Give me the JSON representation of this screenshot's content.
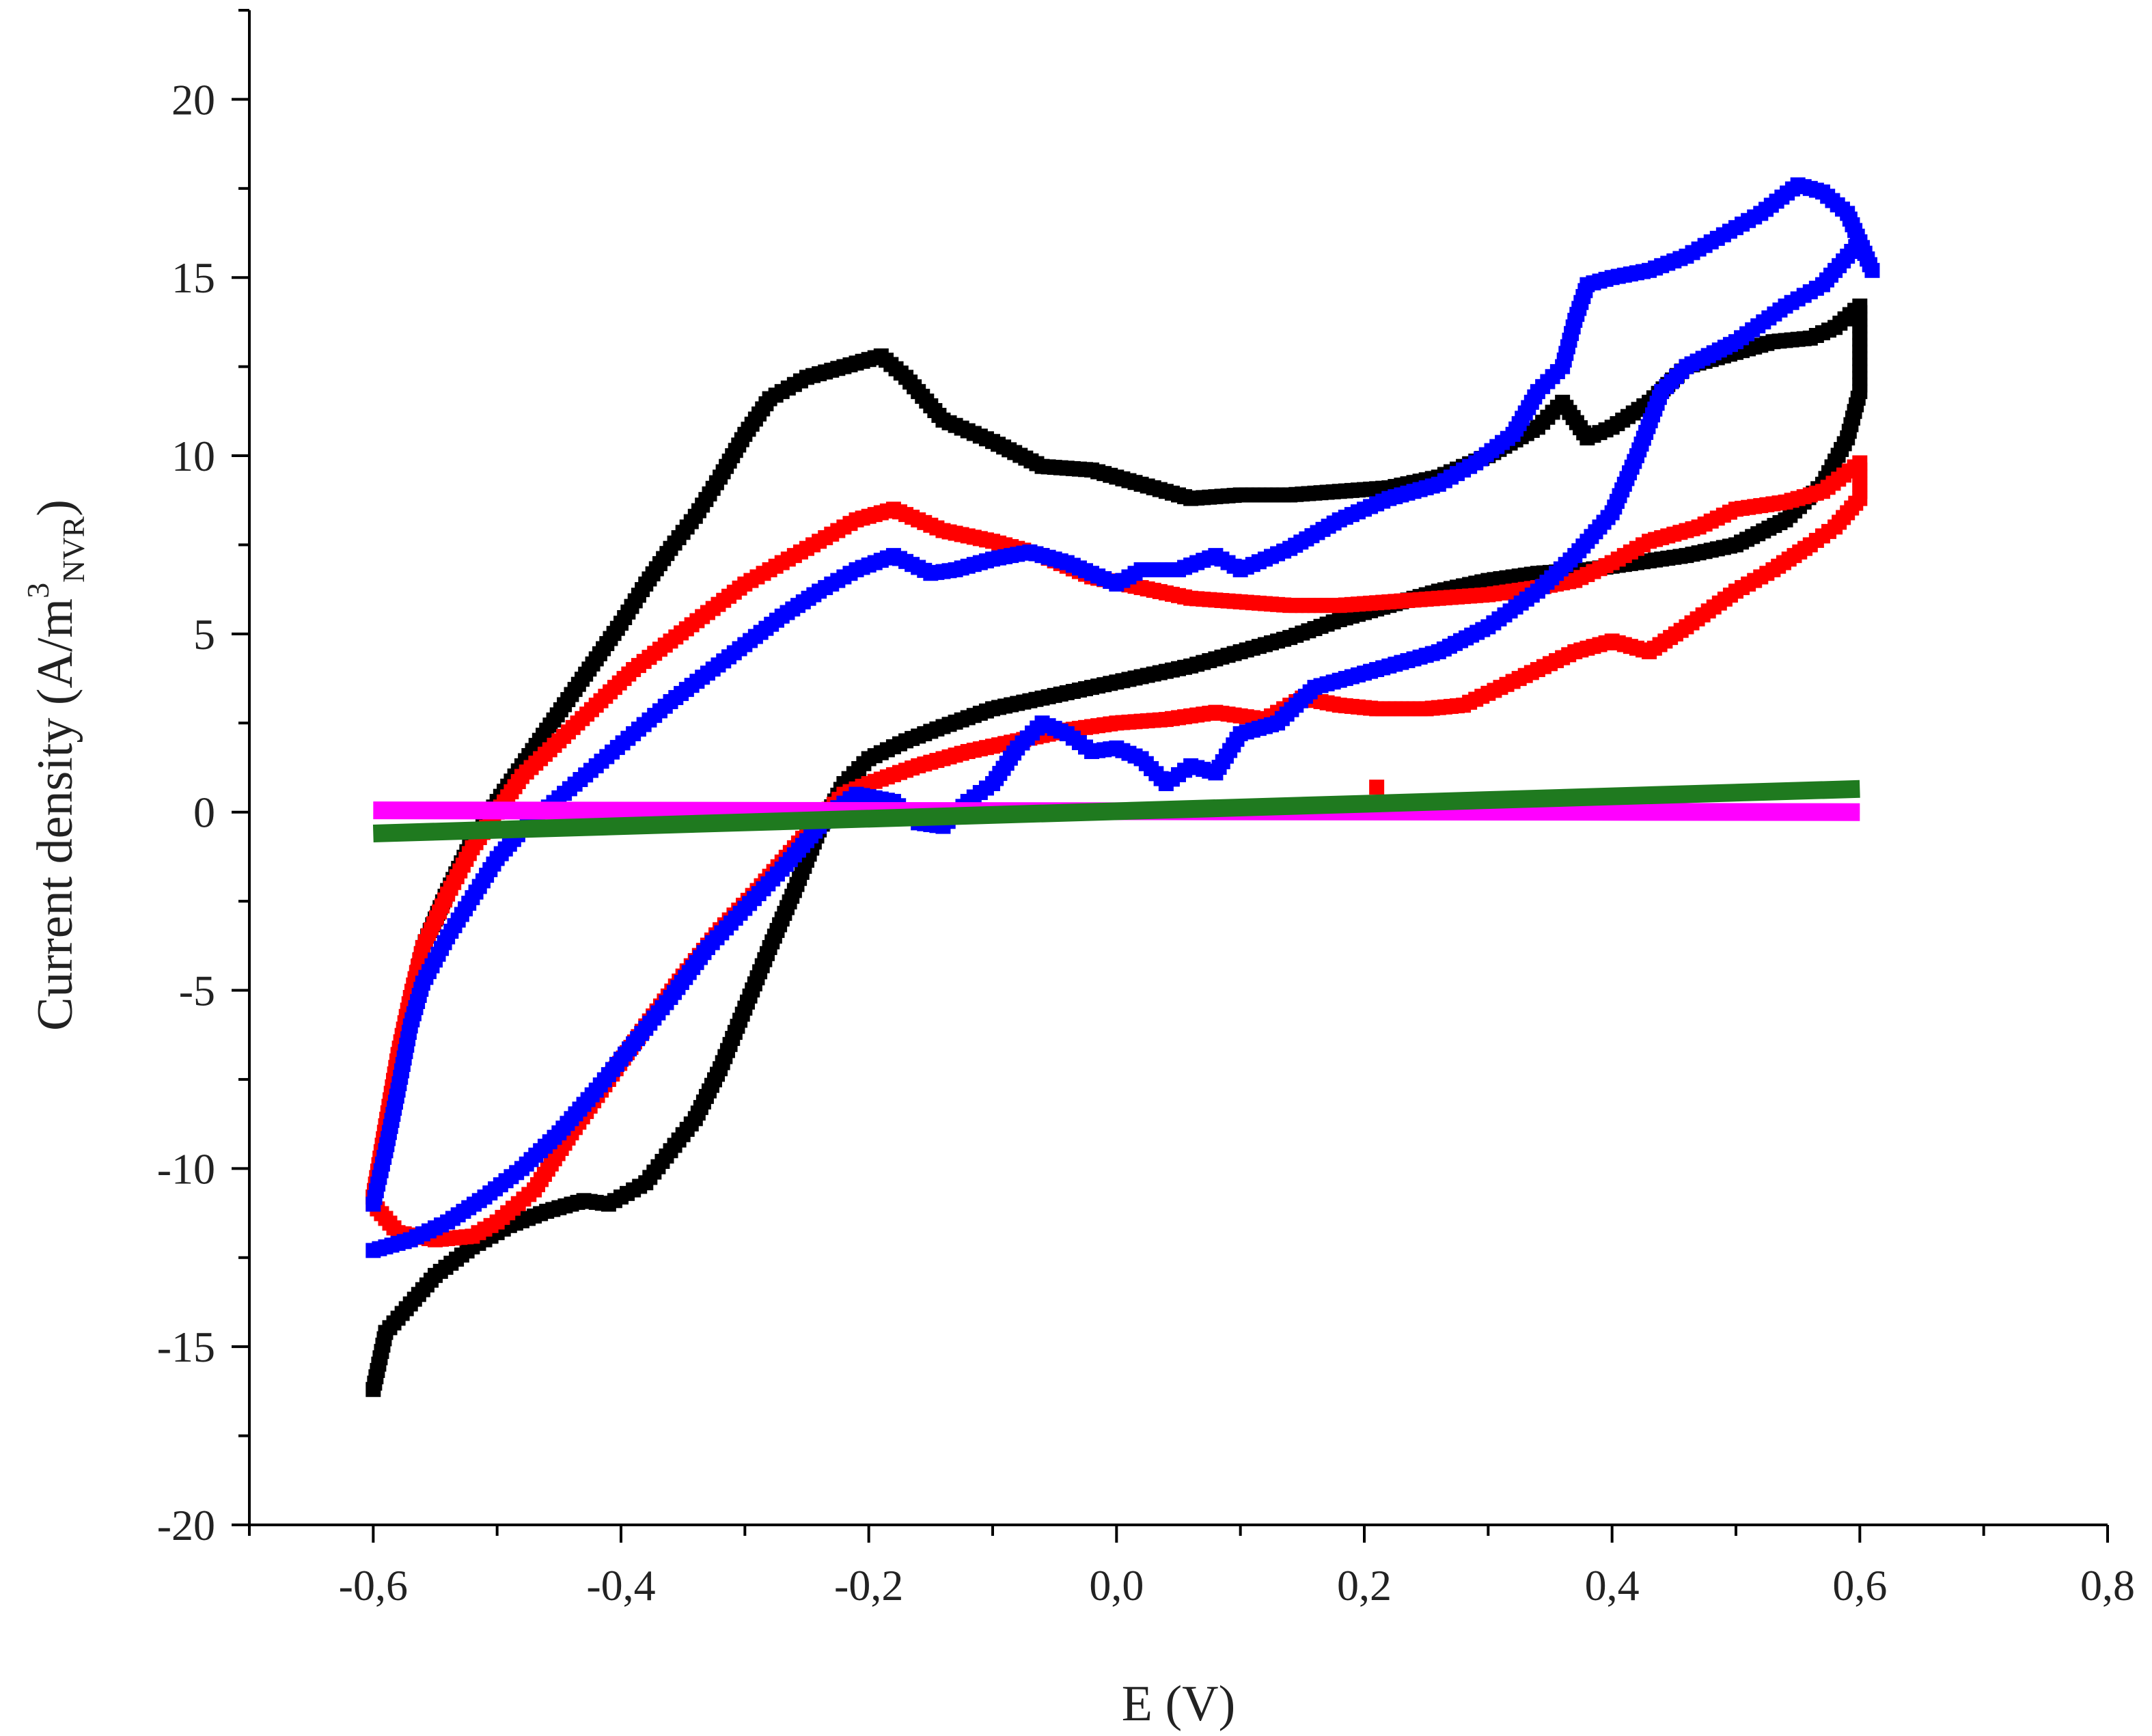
{
  "chart_data": {
    "type": "scatter",
    "title": "",
    "xlabel": "E (V)",
    "ylabel": {
      "main": "Current density (A/m",
      "sup": "3",
      "sub": "NVR",
      "close": ")"
    },
    "xlim": [
      -0.7,
      0.8
    ],
    "ylim": [
      -20,
      22.5
    ],
    "x_ticks": [
      -0.6,
      -0.4,
      -0.2,
      0.0,
      0.2,
      0.4,
      0.6,
      0.8
    ],
    "x_tick_labels": [
      "-0,6",
      "-0,4",
      "-0,2",
      "0,0",
      "0,2",
      "0,4",
      "0,6",
      "0,8"
    ],
    "y_ticks": [
      -20,
      -15,
      -10,
      -5,
      0,
      5,
      10,
      15,
      20
    ],
    "y_tick_labels": [
      "-20",
      "-15",
      "-10",
      "-5",
      "0",
      "5",
      "10",
      "15",
      "20"
    ],
    "grid": false,
    "legend": "none",
    "series": [
      {
        "color": "#000000",
        "marker": "square",
        "points": [
          [
            -0.6,
            -16.2
          ],
          [
            -0.59,
            -14.6
          ],
          [
            -0.57,
            -13.8
          ],
          [
            -0.55,
            -13.0
          ],
          [
            -0.52,
            -12.2
          ],
          [
            -0.49,
            -11.6
          ],
          [
            -0.46,
            -11.2
          ],
          [
            -0.43,
            -10.9
          ],
          [
            -0.41,
            -11.0
          ],
          [
            -0.38,
            -10.4
          ],
          [
            -0.36,
            -9.5
          ],
          [
            -0.34,
            -8.6
          ],
          [
            -0.32,
            -7.2
          ],
          [
            -0.3,
            -5.5
          ],
          [
            -0.28,
            -3.8
          ],
          [
            -0.26,
            -2.2
          ],
          [
            -0.24,
            -0.5
          ],
          [
            -0.22,
            0.8
          ],
          [
            -0.2,
            1.5
          ],
          [
            -0.17,
            2.0
          ],
          [
            -0.14,
            2.4
          ],
          [
            -0.1,
            2.9
          ],
          [
            -0.06,
            3.2
          ],
          [
            -0.02,
            3.5
          ],
          [
            0.02,
            3.8
          ],
          [
            0.06,
            4.1
          ],
          [
            0.1,
            4.5
          ],
          [
            0.14,
            4.9
          ],
          [
            0.18,
            5.4
          ],
          [
            0.22,
            5.8
          ],
          [
            0.26,
            6.2
          ],
          [
            0.3,
            6.5
          ],
          [
            0.34,
            6.7
          ],
          [
            0.38,
            6.8
          ],
          [
            0.42,
            7.0
          ],
          [
            0.46,
            7.2
          ],
          [
            0.5,
            7.5
          ],
          [
            0.54,
            8.2
          ],
          [
            0.57,
            9.2
          ],
          [
            0.59,
            10.5
          ],
          [
            0.6,
            11.8
          ],
          [
            0.6,
            14.2
          ],
          [
            0.58,
            13.6
          ],
          [
            0.56,
            13.3
          ],
          [
            0.53,
            13.2
          ],
          [
            0.5,
            12.9
          ],
          [
            0.46,
            12.5
          ],
          [
            0.43,
            11.5
          ],
          [
            0.4,
            10.8
          ],
          [
            0.38,
            10.5
          ],
          [
            0.36,
            11.5
          ],
          [
            0.34,
            10.8
          ],
          [
            0.3,
            10.0
          ],
          [
            0.26,
            9.4
          ],
          [
            0.22,
            9.1
          ],
          [
            0.18,
            9.0
          ],
          [
            0.14,
            8.9
          ],
          [
            0.1,
            8.9
          ],
          [
            0.06,
            8.8
          ],
          [
            0.02,
            9.2
          ],
          [
            -0.02,
            9.6
          ],
          [
            -0.06,
            9.7
          ],
          [
            -0.1,
            10.4
          ],
          [
            -0.14,
            11.0
          ],
          [
            -0.17,
            12.2
          ],
          [
            -0.19,
            12.8
          ],
          [
            -0.22,
            12.5
          ],
          [
            -0.25,
            12.2
          ],
          [
            -0.28,
            11.6
          ],
          [
            -0.3,
            10.6
          ],
          [
            -0.32,
            9.4
          ],
          [
            -0.34,
            8.3
          ],
          [
            -0.36,
            7.4
          ],
          [
            -0.38,
            6.4
          ],
          [
            -0.4,
            5.3
          ],
          [
            -0.42,
            4.3
          ],
          [
            -0.44,
            3.3
          ],
          [
            -0.46,
            2.3
          ],
          [
            -0.48,
            1.3
          ],
          [
            -0.5,
            0.3
          ],
          [
            -0.52,
            -0.8
          ],
          [
            -0.54,
            -2.2
          ],
          [
            -0.56,
            -3.8
          ],
          [
            -0.57,
            -5.5
          ],
          [
            -0.58,
            -7.5
          ],
          [
            -0.59,
            -9.5
          ],
          [
            -0.6,
            -10.8
          ]
        ]
      },
      {
        "color": "#ff0000",
        "marker": "square",
        "points": [
          [
            -0.6,
            -11.0
          ],
          [
            -0.58,
            -11.8
          ],
          [
            -0.55,
            -12.0
          ],
          [
            -0.52,
            -11.9
          ],
          [
            -0.5,
            -11.5
          ],
          [
            -0.47,
            -10.6
          ],
          [
            -0.44,
            -9.0
          ],
          [
            -0.41,
            -7.5
          ],
          [
            -0.38,
            -6.0
          ],
          [
            -0.35,
            -4.6
          ],
          [
            -0.32,
            -3.3
          ],
          [
            -0.29,
            -2.2
          ],
          [
            -0.26,
            -1.0
          ],
          [
            -0.24,
            -0.2
          ],
          [
            -0.22,
            0.5
          ],
          [
            -0.2,
            0.8
          ],
          [
            -0.16,
            1.3
          ],
          [
            -0.12,
            1.7
          ],
          [
            -0.08,
            2.0
          ],
          [
            -0.04,
            2.3
          ],
          [
            0.0,
            2.5
          ],
          [
            0.04,
            2.6
          ],
          [
            0.08,
            2.8
          ],
          [
            0.12,
            2.6
          ],
          [
            0.15,
            3.2
          ],
          [
            0.18,
            3.0
          ],
          [
            0.21,
            2.9
          ],
          [
            0.25,
            2.9
          ],
          [
            0.28,
            3.0
          ],
          [
            0.31,
            3.5
          ],
          [
            0.34,
            4.0
          ],
          [
            0.37,
            4.5
          ],
          [
            0.4,
            4.8
          ],
          [
            0.43,
            4.5
          ],
          [
            0.46,
            5.2
          ],
          [
            0.5,
            6.2
          ],
          [
            0.53,
            6.8
          ],
          [
            0.56,
            7.5
          ],
          [
            0.58,
            8.0
          ],
          [
            0.6,
            8.8
          ],
          [
            0.6,
            9.8
          ],
          [
            0.57,
            9.0
          ],
          [
            0.54,
            8.7
          ],
          [
            0.5,
            8.5
          ],
          [
            0.47,
            8.0
          ],
          [
            0.43,
            7.6
          ],
          [
            0.4,
            7.0
          ],
          [
            0.37,
            6.5
          ],
          [
            0.34,
            6.3
          ],
          [
            0.3,
            6.1
          ],
          [
            0.26,
            6.0
          ],
          [
            0.22,
            5.9
          ],
          [
            0.18,
            5.8
          ],
          [
            0.14,
            5.8
          ],
          [
            0.1,
            5.9
          ],
          [
            0.06,
            6.0
          ],
          [
            0.02,
            6.3
          ],
          [
            -0.02,
            6.6
          ],
          [
            -0.06,
            7.2
          ],
          [
            -0.1,
            7.6
          ],
          [
            -0.14,
            7.9
          ],
          [
            -0.18,
            8.5
          ],
          [
            -0.21,
            8.2
          ],
          [
            -0.24,
            7.6
          ],
          [
            -0.27,
            7.0
          ],
          [
            -0.3,
            6.4
          ],
          [
            -0.33,
            5.6
          ],
          [
            -0.36,
            4.8
          ],
          [
            -0.39,
            4.0
          ],
          [
            -0.42,
            3.0
          ],
          [
            -0.45,
            2.0
          ],
          [
            -0.48,
            1.0
          ],
          [
            -0.5,
            0.0
          ],
          [
            -0.52,
            -1.0
          ],
          [
            -0.54,
            -2.3
          ],
          [
            -0.56,
            -3.8
          ],
          [
            -0.57,
            -5.2
          ],
          [
            -0.58,
            -6.8
          ],
          [
            -0.59,
            -8.8
          ],
          [
            -0.6,
            -10.8
          ],
          [
            0.21,
            0.7
          ]
        ]
      },
      {
        "color": "#0000ff",
        "marker": "square",
        "points": [
          [
            -0.6,
            -12.3
          ],
          [
            -0.57,
            -12.0
          ],
          [
            -0.54,
            -11.5
          ],
          [
            -0.51,
            -10.8
          ],
          [
            -0.48,
            -10.0
          ],
          [
            -0.45,
            -9.0
          ],
          [
            -0.42,
            -7.8
          ],
          [
            -0.39,
            -6.5
          ],
          [
            -0.36,
            -5.2
          ],
          [
            -0.33,
            -3.8
          ],
          [
            -0.3,
            -2.7
          ],
          [
            -0.27,
            -1.6
          ],
          [
            -0.25,
            -0.8
          ],
          [
            -0.23,
            0.0
          ],
          [
            -0.21,
            0.5
          ],
          [
            -0.18,
            0.3
          ],
          [
            -0.16,
            -0.3
          ],
          [
            -0.14,
            -0.4
          ],
          [
            -0.12,
            0.3
          ],
          [
            -0.1,
            0.8
          ],
          [
            -0.08,
            1.8
          ],
          [
            -0.06,
            2.5
          ],
          [
            -0.04,
            2.2
          ],
          [
            -0.02,
            1.7
          ],
          [
            0.0,
            1.8
          ],
          [
            0.02,
            1.5
          ],
          [
            0.04,
            0.8
          ],
          [
            0.06,
            1.3
          ],
          [
            0.08,
            1.1
          ],
          [
            0.1,
            2.2
          ],
          [
            0.13,
            2.5
          ],
          [
            0.16,
            3.5
          ],
          [
            0.19,
            3.8
          ],
          [
            0.22,
            4.1
          ],
          [
            0.26,
            4.5
          ],
          [
            0.3,
            5.2
          ],
          [
            0.34,
            6.2
          ],
          [
            0.37,
            7.2
          ],
          [
            0.4,
            8.4
          ],
          [
            0.42,
            10.0
          ],
          [
            0.44,
            11.8
          ],
          [
            0.46,
            12.5
          ],
          [
            0.5,
            13.2
          ],
          [
            0.54,
            14.2
          ],
          [
            0.57,
            14.8
          ],
          [
            0.6,
            16.0
          ],
          [
            0.61,
            15.2
          ],
          [
            0.59,
            16.8
          ],
          [
            0.57,
            17.4
          ],
          [
            0.55,
            17.6
          ],
          [
            0.52,
            16.8
          ],
          [
            0.49,
            16.2
          ],
          [
            0.46,
            15.6
          ],
          [
            0.43,
            15.2
          ],
          [
            0.4,
            15.0
          ],
          [
            0.38,
            14.8
          ],
          [
            0.37,
            13.8
          ],
          [
            0.36,
            12.5
          ],
          [
            0.34,
            11.8
          ],
          [
            0.32,
            10.6
          ],
          [
            0.29,
            9.8
          ],
          [
            0.26,
            9.2
          ],
          [
            0.22,
            8.8
          ],
          [
            0.18,
            8.2
          ],
          [
            0.14,
            7.4
          ],
          [
            0.1,
            6.8
          ],
          [
            0.08,
            7.2
          ],
          [
            0.05,
            6.8
          ],
          [
            0.02,
            6.8
          ],
          [
            0.0,
            6.4
          ],
          [
            -0.04,
            7.0
          ],
          [
            -0.07,
            7.3
          ],
          [
            -0.1,
            7.1
          ],
          [
            -0.13,
            6.8
          ],
          [
            -0.15,
            6.7
          ],
          [
            -0.18,
            7.2
          ],
          [
            -0.21,
            6.8
          ],
          [
            -0.24,
            6.2
          ],
          [
            -0.27,
            5.5
          ],
          [
            -0.3,
            4.7
          ],
          [
            -0.33,
            3.9
          ],
          [
            -0.36,
            3.1
          ],
          [
            -0.39,
            2.2
          ],
          [
            -0.42,
            1.3
          ],
          [
            -0.45,
            0.4
          ],
          [
            -0.48,
            -0.5
          ],
          [
            -0.5,
            -1.3
          ],
          [
            -0.52,
            -2.4
          ],
          [
            -0.54,
            -3.5
          ],
          [
            -0.56,
            -4.8
          ],
          [
            -0.57,
            -6.0
          ],
          [
            -0.58,
            -7.8
          ],
          [
            -0.59,
            -9.5
          ],
          [
            -0.6,
            -11.0
          ]
        ]
      },
      {
        "color": "#ff00ff",
        "marker": "line",
        "points": [
          [
            -0.6,
            0.05
          ],
          [
            0.6,
            0.0
          ]
        ]
      },
      {
        "color": "#1f7a1f",
        "marker": "line",
        "points": [
          [
            -0.6,
            -0.6
          ],
          [
            0.6,
            0.65
          ]
        ]
      }
    ]
  }
}
